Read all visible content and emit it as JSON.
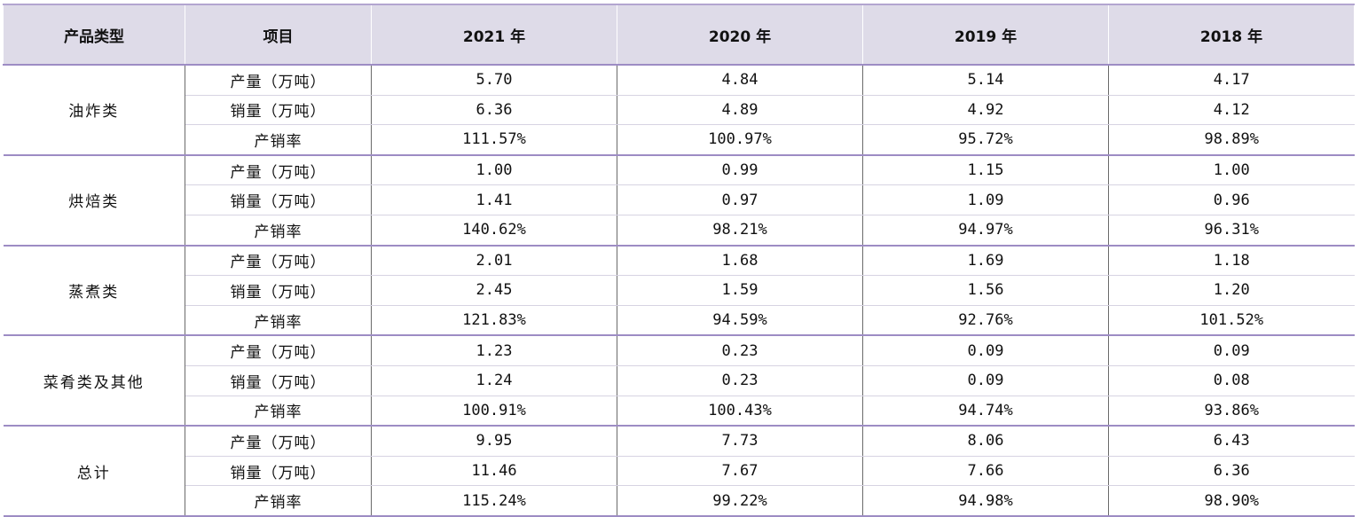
{
  "header": [
    "产品类型",
    "项目",
    "2021 年",
    "2020 年",
    "2019 年",
    "2018 年"
  ],
  "groups": [
    {
      "category": "油炸类",
      "rows": [
        {
          "item": "产量（万吨）",
          "values": [
            "5.70",
            "4.84",
            "5.14",
            "4.17"
          ]
        },
        {
          "item": "销量（万吨）",
          "values": [
            "6.36",
            "4.89",
            "4.92",
            "4.12"
          ]
        },
        {
          "item": "产销率",
          "values": [
            "111.57%",
            "100.97%",
            "95.72%",
            "98.89%"
          ]
        }
      ]
    },
    {
      "category": "烘焙类",
      "rows": [
        {
          "item": "产量（万吨）",
          "values": [
            "1.00",
            "0.99",
            "1.15",
            "1.00"
          ]
        },
        {
          "item": "销量（万吨）",
          "values": [
            "1.41",
            "0.97",
            "1.09",
            "0.96"
          ]
        },
        {
          "item": "产销率",
          "values": [
            "140.62%",
            "98.21%",
            "94.97%",
            "96.31%"
          ]
        }
      ]
    },
    {
      "category": "蒸煮类",
      "rows": [
        {
          "item": "产量（万吨）",
          "values": [
            "2.01",
            "1.68",
            "1.69",
            "1.18"
          ]
        },
        {
          "item": "销量（万吨）",
          "values": [
            "2.45",
            "1.59",
            "1.56",
            "1.20"
          ]
        },
        {
          "item": "产销率",
          "values": [
            "121.83%",
            "94.59%",
            "92.76%",
            "101.52%"
          ]
        }
      ]
    },
    {
      "category": "菜肴类及其他",
      "rows": [
        {
          "item": "产量（万吨）",
          "values": [
            "1.23",
            "0.23",
            "0.09",
            "0.09"
          ]
        },
        {
          "item": "销量（万吨）",
          "values": [
            "1.24",
            "0.23",
            "0.09",
            "0.08"
          ]
        },
        {
          "item": "产销率",
          "values": [
            "100.91%",
            "100.43%",
            "94.74%",
            "93.86%"
          ]
        }
      ]
    },
    {
      "category": "总计",
      "rows": [
        {
          "item": "产量（万吨）",
          "values": [
            "9.95",
            "7.73",
            "8.06",
            "6.43"
          ]
        },
        {
          "item": "销量（万吨）",
          "values": [
            "11.46",
            "7.67",
            "7.66",
            "6.36"
          ]
        },
        {
          "item": "产销率",
          "values": [
            "115.24%",
            "99.22%",
            "94.98%",
            "98.90%"
          ]
        }
      ]
    }
  ]
}
